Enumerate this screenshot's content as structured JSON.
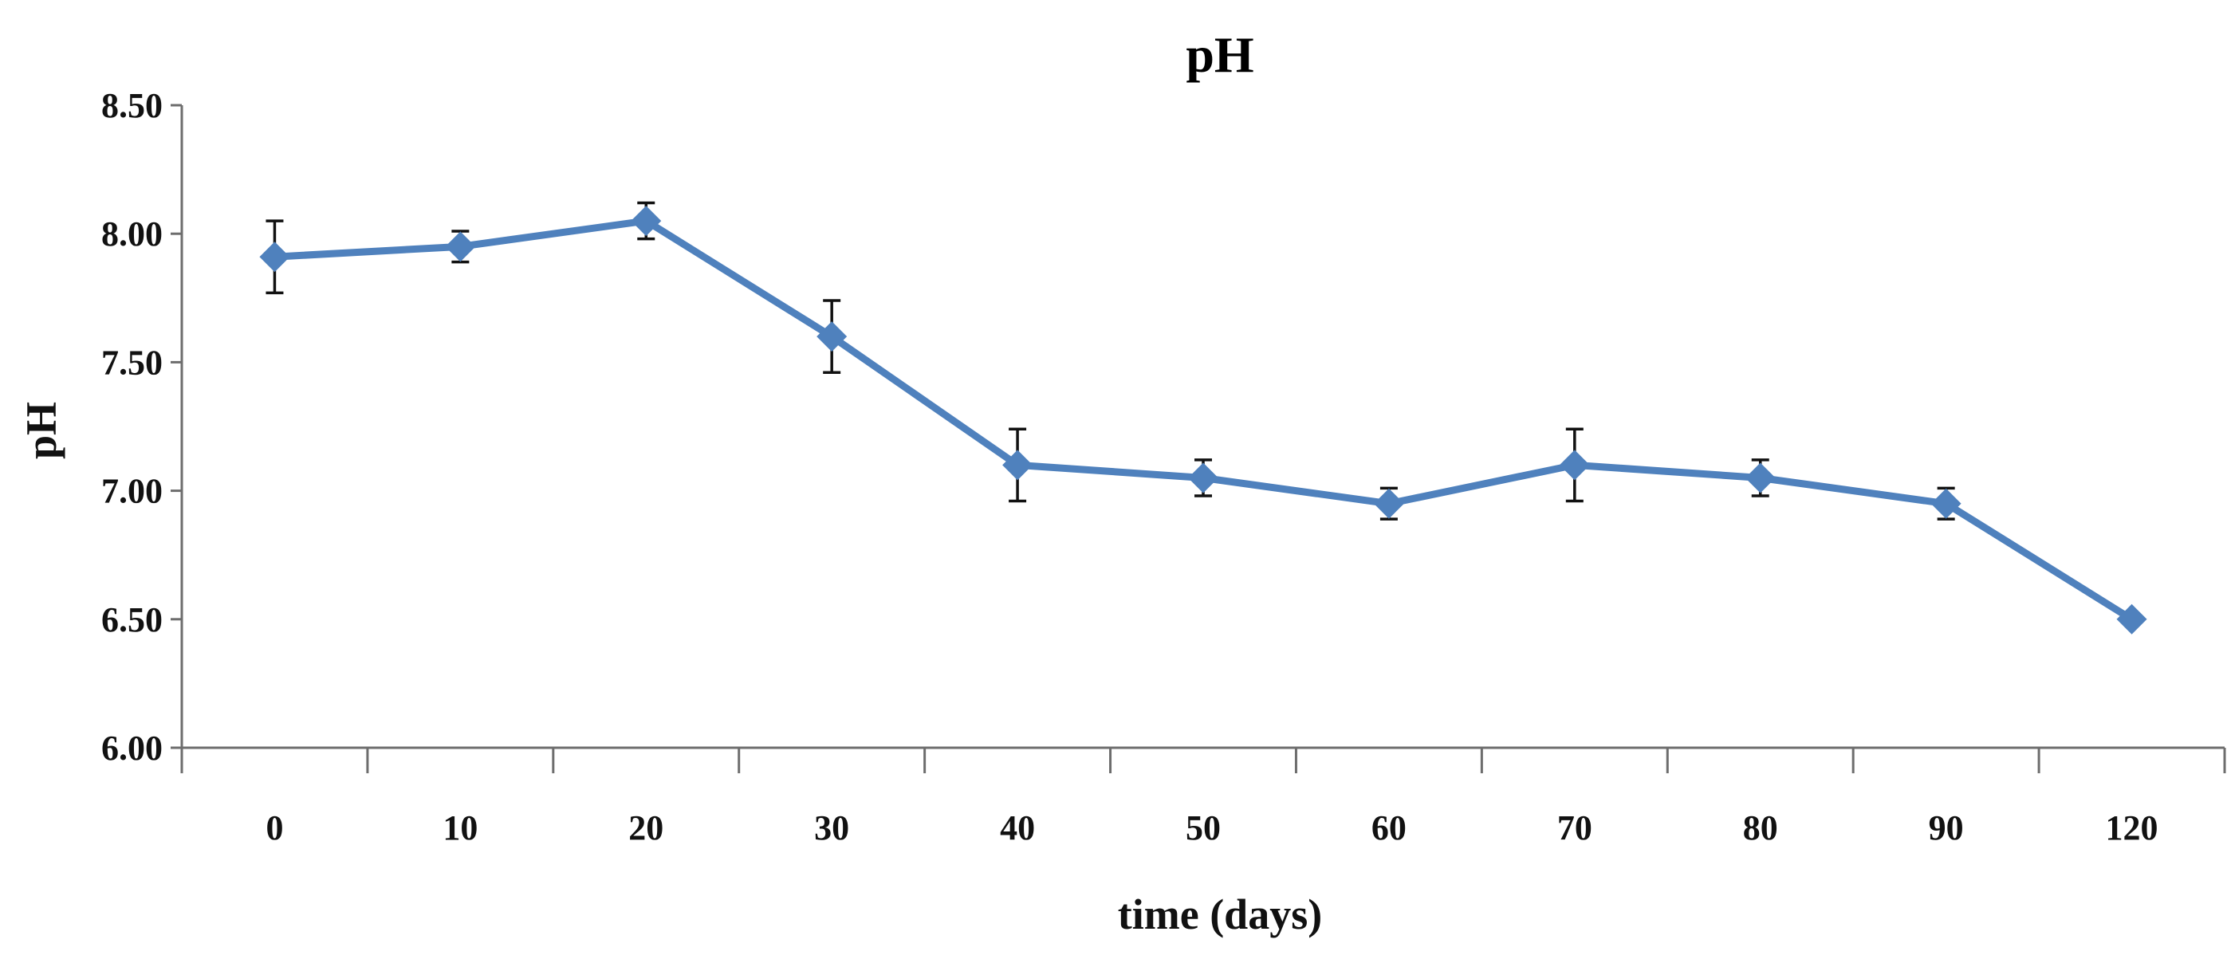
{
  "chart_data": {
    "type": "line",
    "title": "pH",
    "xlabel": "time (days)",
    "ylabel": "pH",
    "categories": [
      "0",
      "10",
      "20",
      "30",
      "40",
      "50",
      "60",
      "70",
      "80",
      "90",
      "120"
    ],
    "ylim": [
      6.0,
      8.5
    ],
    "yticks": [
      6.0,
      6.5,
      7.0,
      7.5,
      8.0,
      8.5
    ],
    "ytick_labels": [
      "6.00",
      "6.50",
      "7.00",
      "7.50",
      "8.00",
      "8.50"
    ],
    "grid": false,
    "legend": "none",
    "series": [
      {
        "name": "pH",
        "color": "#4f81bd",
        "marker": "diamond",
        "values": [
          7.91,
          7.95,
          8.05,
          7.6,
          7.1,
          7.05,
          6.95,
          7.1,
          7.05,
          6.95,
          6.5
        ],
        "error": [
          0.14,
          0.06,
          0.07,
          0.14,
          0.14,
          0.07,
          0.06,
          0.14,
          0.07,
          0.06,
          0.0
        ]
      }
    ]
  }
}
